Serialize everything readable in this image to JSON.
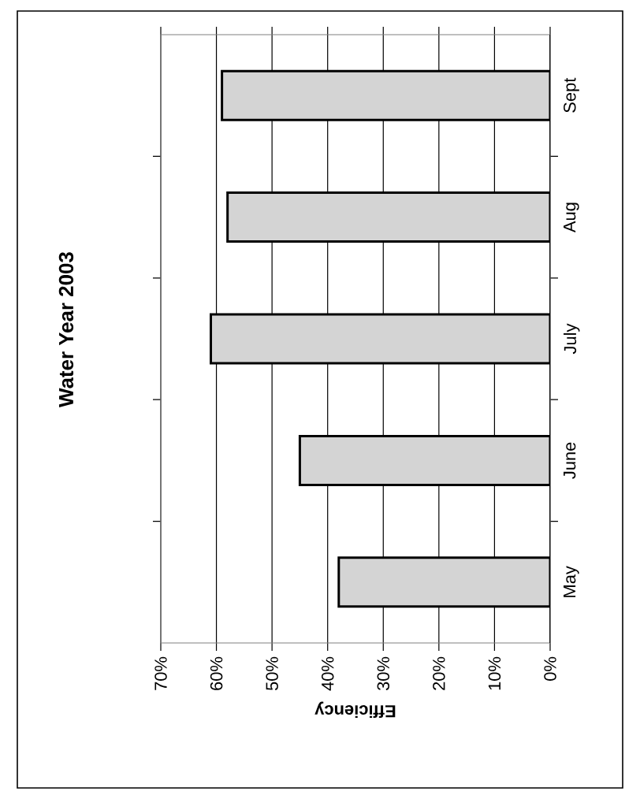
{
  "chart_data": {
    "type": "bar",
    "orientation": "horizontal",
    "title": "Water Year 2003",
    "xlabel": "Efficiency",
    "categories": [
      "Sept",
      "Aug",
      "July",
      "June",
      "May"
    ],
    "values": [
      59,
      58,
      61,
      45,
      38
    ],
    "color": "#d4d4d4",
    "xlim": [
      70,
      0
    ],
    "xticks": [
      {
        "value": 70,
        "label": "70%"
      },
      {
        "value": 60,
        "label": "60%"
      },
      {
        "value": 50,
        "label": "50%"
      },
      {
        "value": 40,
        "label": "40%"
      },
      {
        "value": 30,
        "label": "30%"
      },
      {
        "value": 20,
        "label": "20%"
      },
      {
        "value": 10,
        "label": "10%"
      },
      {
        "value": 0,
        "label": "0%"
      }
    ],
    "grid": "x"
  }
}
